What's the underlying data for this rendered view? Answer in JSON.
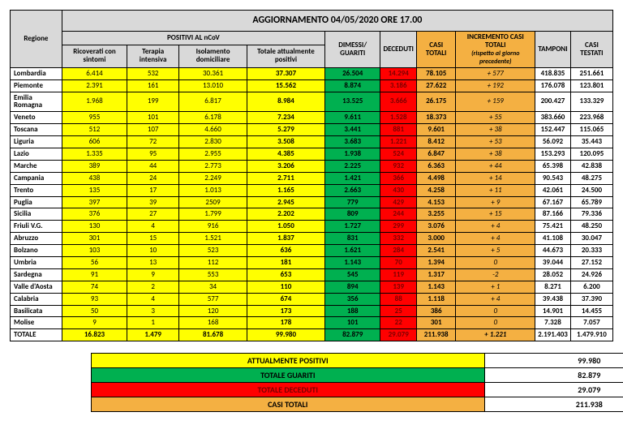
{
  "title": "AGGIORNAMENTO 04/05/2020 ORE 17.00",
  "headers": {
    "regione": "Regione",
    "positivi_group": "POSITIVI AL nCoV",
    "ricoverati": "Ricoverati con sintomi",
    "terapia": "Terapia intensiva",
    "isolamento": "Isolamento domiciliare",
    "totale_pos": "Totale attualmente positivi",
    "dimessi": "DIMESSI/ GUARITI",
    "deceduti": "DECEDUTI",
    "casi_totali": "CASI TOTALI",
    "incremento": "INCREMENTO CASI  TOTALI",
    "incremento_sub": "(rispetto al giorno precedente)",
    "tamponi": "TAMPONI",
    "casi_testati": "CASI TESTATI"
  },
  "rows": [
    {
      "r": "Lombardia",
      "a": "6.414",
      "b": "532",
      "c": "30.361",
      "d": "37.307",
      "e": "26.504",
      "f": "14.294",
      "g": "78.105",
      "h": "+ 577",
      "i": "418.835",
      "j": "251.661"
    },
    {
      "r": "Piemonte",
      "a": "2.391",
      "b": "161",
      "c": "13.010",
      "d": "15.562",
      "e": "8.874",
      "f": "3.186",
      "g": "27.622",
      "h": "+ 192",
      "i": "176.078",
      "j": "123.801"
    },
    {
      "r": "Emilia Romagna",
      "a": "1.968",
      "b": "199",
      "c": "6.817",
      "d": "8.984",
      "e": "13.525",
      "f": "3.666",
      "g": "26.175",
      "h": "+ 159",
      "i": "200.427",
      "j": "133.329"
    },
    {
      "r": "Veneto",
      "a": "955",
      "b": "101",
      "c": "6.178",
      "d": "7.234",
      "e": "9.611",
      "f": "1.528",
      "g": "18.373",
      "h": "+ 55",
      "i": "383.660",
      "j": "223.968"
    },
    {
      "r": "Toscana",
      "a": "512",
      "b": "107",
      "c": "4.660",
      "d": "5.279",
      "e": "3.441",
      "f": "881",
      "g": "9.601",
      "h": "+ 38",
      "i": "152.447",
      "j": "115.065"
    },
    {
      "r": "Liguria",
      "a": "606",
      "b": "72",
      "c": "2.830",
      "d": "3.508",
      "e": "3.683",
      "f": "1.221",
      "g": "8.412",
      "h": "+ 53",
      "i": "56.092",
      "j": "35.443"
    },
    {
      "r": "Lazio",
      "a": "1.335",
      "b": "95",
      "c": "2.955",
      "d": "4.385",
      "e": "1.938",
      "f": "524",
      "g": "6.847",
      "h": "+ 38",
      "i": "153.293",
      "j": "120.095"
    },
    {
      "r": "Marche",
      "a": "389",
      "b": "44",
      "c": "2.773",
      "d": "3.206",
      "e": "2.225",
      "f": "932",
      "g": "6.363",
      "h": "+ 44",
      "i": "65.398",
      "j": "42.838"
    },
    {
      "r": "Campania",
      "a": "438",
      "b": "24",
      "c": "2.249",
      "d": "2.711",
      "e": "1.421",
      "f": "366",
      "g": "4.498",
      "h": "+ 14",
      "i": "90.543",
      "j": "48.275"
    },
    {
      "r": "Trento",
      "a": "135",
      "b": "17",
      "c": "1.013",
      "d": "1.165",
      "e": "2.663",
      "f": "430",
      "g": "4.258",
      "h": "+ 11",
      "i": "42.061",
      "j": "24.500"
    },
    {
      "r": "Puglia",
      "a": "397",
      "b": "39",
      "c": "2509",
      "d": "2.945",
      "e": "779",
      "f": "429",
      "g": "4.153",
      "h": "+ 9",
      "i": "67.167",
      "j": "65.789"
    },
    {
      "r": "Sicilia",
      "a": "376",
      "b": "27",
      "c": "1.799",
      "d": "2.202",
      "e": "809",
      "f": "244",
      "g": "3.255",
      "h": "+ 15",
      "i": "87.166",
      "j": "79.336"
    },
    {
      "r": "Friuli V.G.",
      "a": "130",
      "b": "4",
      "c": "916",
      "d": "1.050",
      "e": "1.727",
      "f": "299",
      "g": "3.076",
      "h": "+ 4",
      "i": "75.421",
      "j": "48.250"
    },
    {
      "r": "Abruzzo",
      "a": "301",
      "b": "15",
      "c": "1.521",
      "d": "1.837",
      "e": "831",
      "f": "332",
      "g": "3.000",
      "h": "+ 4",
      "i": "41.108",
      "j": "30.047"
    },
    {
      "r": "Bolzano",
      "a": "103",
      "b": "10",
      "c": "523",
      "d": "636",
      "e": "1.621",
      "f": "284",
      "g": "2.541",
      "h": "+ 5",
      "i": "44.673",
      "j": "20.333"
    },
    {
      "r": "Umbria",
      "a": "56",
      "b": "13",
      "c": "112",
      "d": "181",
      "e": "1.143",
      "f": "70",
      "g": "1.394",
      "h": "0",
      "i": "39.044",
      "j": "27.152"
    },
    {
      "r": "Sardegna",
      "a": "91",
      "b": "9",
      "c": "553",
      "d": "653",
      "e": "545",
      "f": "119",
      "g": "1.317",
      "h": "-2",
      "i": "28.052",
      "j": "24.926"
    },
    {
      "r": "Valle d'Aosta",
      "a": "74",
      "b": "2",
      "c": "34",
      "d": "110",
      "e": "894",
      "f": "139",
      "g": "1.143",
      "h": "+ 1",
      "i": "8.271",
      "j": "6.200"
    },
    {
      "r": "Calabria",
      "a": "93",
      "b": "4",
      "c": "577",
      "d": "674",
      "e": "356",
      "f": "88",
      "g": "1.118",
      "h": "+ 4",
      "i": "39.438",
      "j": "37.390"
    },
    {
      "r": "Basilicata",
      "a": "50",
      "b": "3",
      "c": "120",
      "d": "173",
      "e": "188",
      "f": "25",
      "g": "386",
      "h": "0",
      "i": "14.901",
      "j": "14.455"
    },
    {
      "r": "Molise",
      "a": "9",
      "b": "1",
      "c": "168",
      "d": "178",
      "e": "101",
      "f": "22",
      "g": "301",
      "h": "0",
      "i": "7.328",
      "j": "7.057"
    }
  ],
  "totale": {
    "r": "TOTALE",
    "a": "16.823",
    "b": "1.479",
    "c": "81.678",
    "d": "99.980",
    "e": "82.879",
    "f": "29.079",
    "g": "211.938",
    "h": "+ 1.221",
    "i": "2.191.403",
    "j": "1.479.910"
  },
  "summary": {
    "att_pos_lbl": "ATTUALMENTE POSITIVI",
    "att_pos_val": "99.980",
    "guariti_lbl": "TOTALE GUARITI",
    "guariti_val": "82.879",
    "deceduti_lbl": "TOTALE DECEDUTI",
    "deceduti_val": "29.079",
    "casi_lbl": "CASI TOTALI",
    "casi_val": "211.938"
  },
  "colors": {
    "gray": "#d9d9d9",
    "orange": "#f4b042",
    "yellow": "#ffff00",
    "green": "#00b050",
    "red": "#ff0000"
  }
}
